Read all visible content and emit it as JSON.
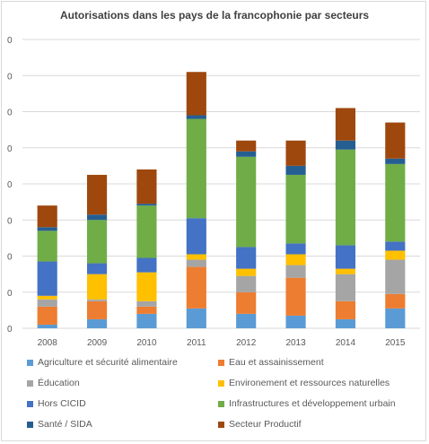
{
  "chart_data": {
    "type": "bar",
    "stacked": true,
    "title": "Autorisations dans les pays de la francophonie par secteurs",
    "xlabel": "",
    "ylabel": "",
    "ylim": [
      0,
      80
    ],
    "ytick_values": [
      0,
      10,
      20,
      30,
      40,
      50,
      60,
      70,
      80
    ],
    "ytick_labels": [
      "0",
      "0",
      "0",
      "0",
      "0",
      "0",
      "0",
      "0",
      "0"
    ],
    "categories": [
      "2008",
      "2009",
      "2010",
      "2011",
      "2012",
      "2013",
      "2014",
      "2015"
    ],
    "grid": true,
    "legend_position": "bottom",
    "series": [
      {
        "name": "Agriculture et sécurité alimentaire",
        "color": "#5b9bd5",
        "values": [
          1,
          2.5,
          4,
          5.5,
          4,
          3.5,
          2.5,
          5.5
        ]
      },
      {
        "name": "Eau et assainissement",
        "color": "#ed7d31",
        "values": [
          5,
          5,
          2,
          11.5,
          6,
          10.5,
          5,
          4
        ]
      },
      {
        "name": "Éducation",
        "color": "#a5a5a5",
        "values": [
          2,
          0.5,
          1.5,
          2,
          4.5,
          3.5,
          7.5,
          9.5
        ]
      },
      {
        "name": "Environement et ressources naturelles",
        "color": "#ffc000",
        "values": [
          1,
          7,
          8,
          1.5,
          2,
          3,
          1.5,
          2.5
        ]
      },
      {
        "name": "Hors CICID",
        "color": "#4472c4",
        "values": [
          9.5,
          3,
          4,
          10,
          6,
          3,
          6.5,
          2.5
        ]
      },
      {
        "name": "Infrastructures et développement urbain",
        "color": "#70ad47",
        "values": [
          8.5,
          12,
          14.5,
          27.5,
          25,
          19,
          26.5,
          21.5
        ]
      },
      {
        "name": "Santé / SIDA",
        "color": "#255e91",
        "values": [
          1,
          1.5,
          0.5,
          1,
          1.5,
          2.5,
          2.5,
          1.5
        ]
      },
      {
        "name": "Secteur Productif",
        "color": "#9e480e",
        "values": [
          6,
          11,
          9.5,
          12,
          3,
          7,
          9,
          10
        ]
      }
    ]
  }
}
